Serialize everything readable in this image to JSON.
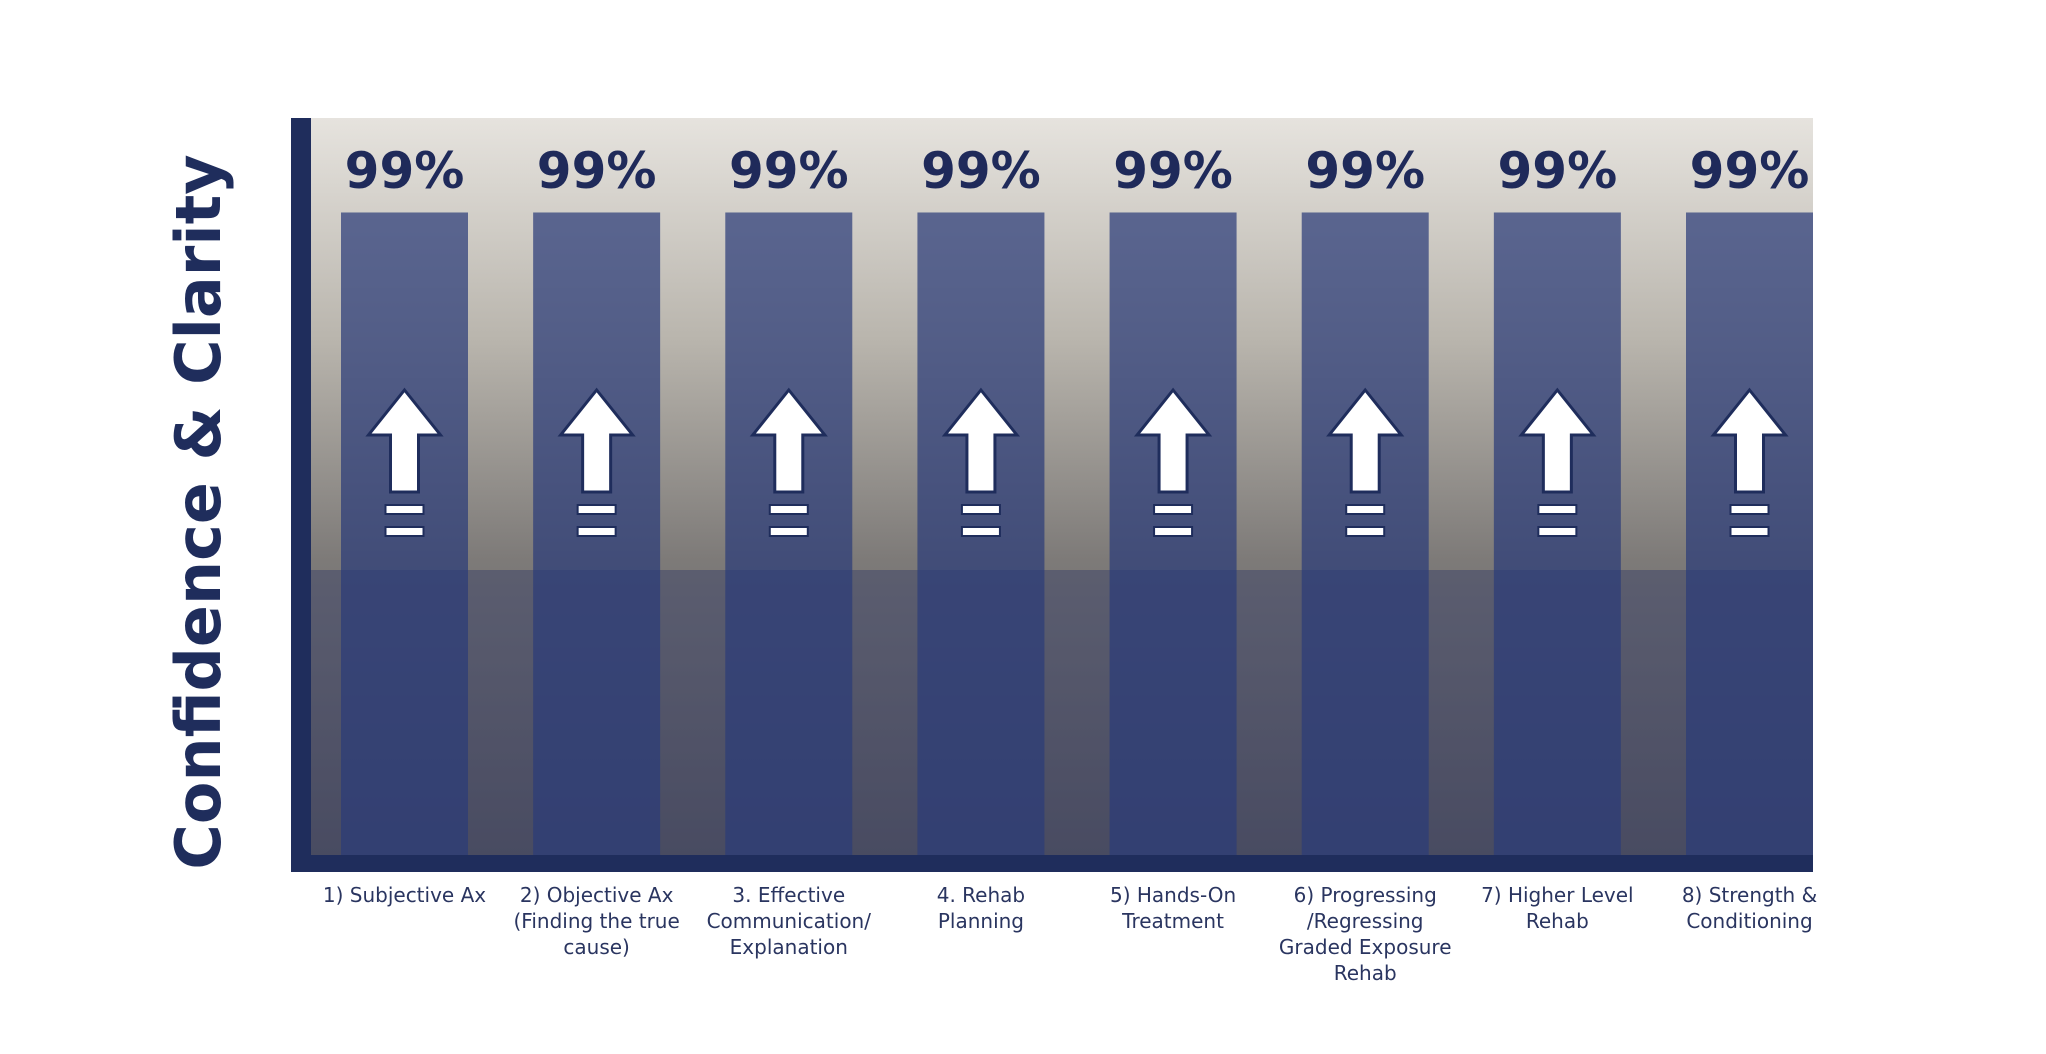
{
  "chart_data": {
    "type": "bar",
    "y_label": "Confidence & Clarity",
    "categories": [
      "1) Subjective Ax",
      "2) Objective Ax (Finding the true cause)",
      "3. Effective Communication/ Explanation",
      "4. Rehab Planning",
      "5) Hands-On Treatment",
      "6) Progressing /Regressing Graded Exposure Rehab",
      "7) Higher Level Rehab",
      "8) Strength & Conditioning"
    ],
    "values": [
      99,
      99,
      99,
      99,
      99,
      99,
      99,
      99
    ],
    "value_labels": [
      "99%",
      "99%",
      "99%",
      "99%",
      "99%",
      "99%",
      "99%",
      "99%"
    ],
    "color": "#2b3b78",
    "ylim": [
      0,
      100
    ]
  }
}
